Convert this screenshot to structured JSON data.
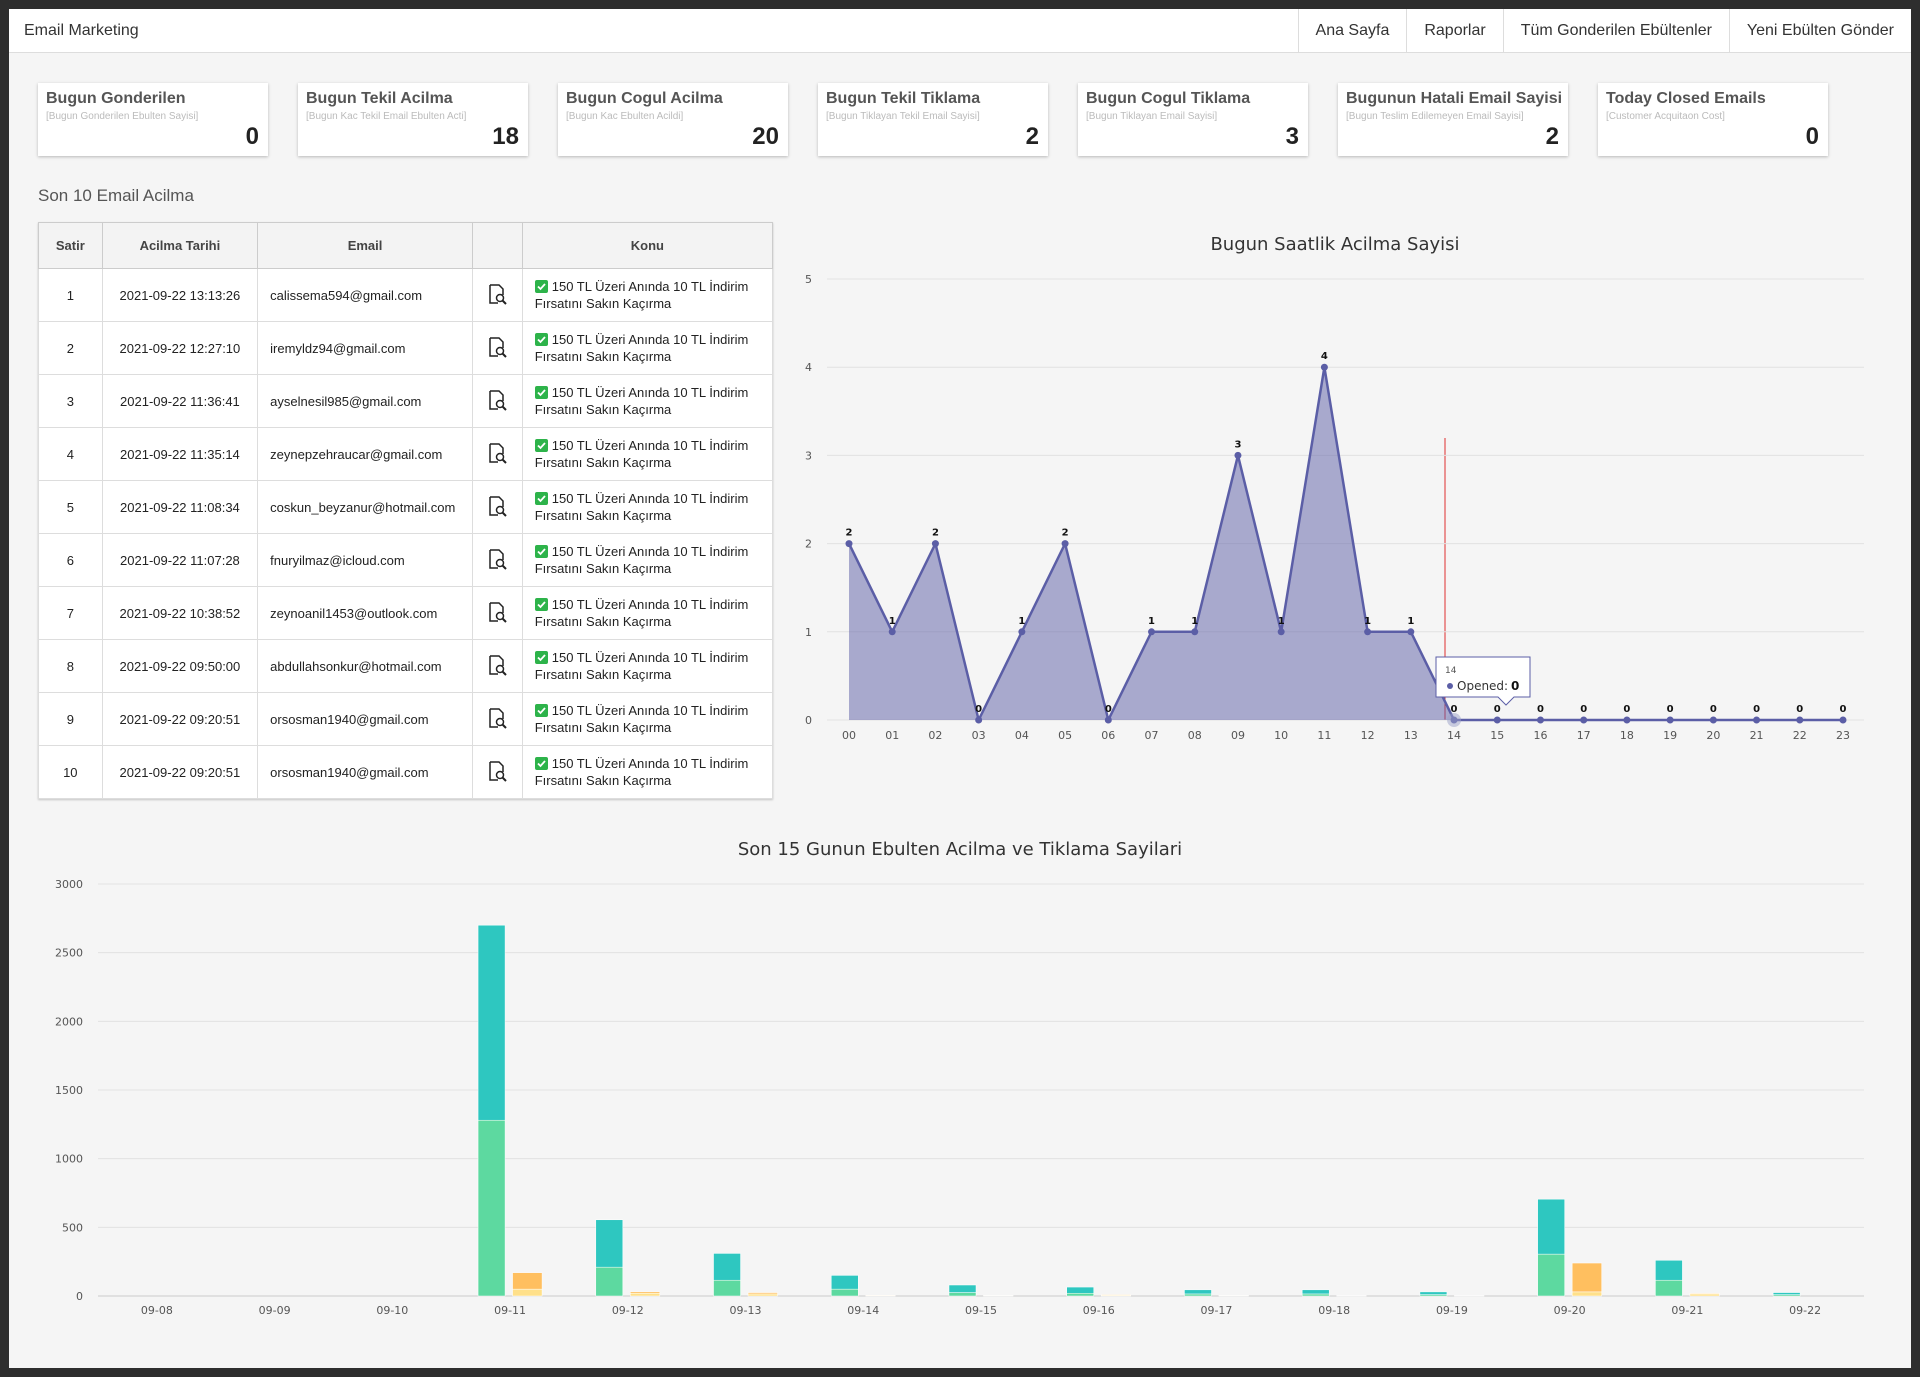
{
  "nav": {
    "brand": "Email Marketing",
    "links": [
      "Ana Sayfa",
      "Raporlar",
      "Tüm Gonderilen Ebültenler",
      "Yeni Ebülten Gönder"
    ]
  },
  "cards": [
    {
      "title": "Bugun Gonderilen",
      "subtitle": "[Bugun Gonderilen Ebulten Sayisi]",
      "value": 0
    },
    {
      "title": "Bugun Tekil Acilma",
      "subtitle": "[Bugun Kac Tekil Email Ebulten Acti]",
      "value": 18
    },
    {
      "title": "Bugun Cogul Acilma",
      "subtitle": "[Bugun Kac Ebulten Acildi]",
      "value": 20
    },
    {
      "title": "Bugun Tekil Tiklama",
      "subtitle": "[Bugun Tiklayan Tekil Email Sayisi]",
      "value": 2
    },
    {
      "title": "Bugun Cogul Tiklama",
      "subtitle": "[Bugun Tiklayan Email Sayisi]",
      "value": 3
    },
    {
      "title": "Bugunun Hatali Email Sayisi",
      "subtitle": "[Bugun Teslim Edilemeyen Email Sayisi]",
      "value": 2
    },
    {
      "title": "Today Closed Emails",
      "subtitle": "[Customer Acquitaon Cost]",
      "value": 0
    }
  ],
  "table": {
    "title": "Son 10 Email Acilma",
    "headers": [
      "Satir",
      "Acilma Tarihi",
      "Email",
      "Konu"
    ],
    "rows": [
      [
        "1",
        "2021-09-22 13:13:26",
        "calissema594@gmail.com",
        "150 TL Üzeri Anında 10 TL İndirim Fırsatını Sakın Kaçırma"
      ],
      [
        "2",
        "2021-09-22 12:27:10",
        "iremyldz94@gmail.com",
        "150 TL Üzeri Anında 10 TL İndirim Fırsatını Sakın Kaçırma"
      ],
      [
        "3",
        "2021-09-22 11:36:41",
        "ayselnesil985@gmail.com",
        "150 TL Üzeri Anında 10 TL İndirim Fırsatını Sakın Kaçırma"
      ],
      [
        "4",
        "2021-09-22 11:35:14",
        "zeynepzehraucar@gmail.com",
        "150 TL Üzeri Anında 10 TL İndirim Fırsatını Sakın Kaçırma"
      ],
      [
        "5",
        "2021-09-22 11:08:34",
        "coskun_beyzanur@hotmail.com",
        "150 TL Üzeri Anında 10 TL İndirim Fırsatını Sakın Kaçırma"
      ],
      [
        "6",
        "2021-09-22 11:07:28",
        "fnuryilmaz@icloud.com",
        "150 TL Üzeri Anında 10 TL İndirim Fırsatını Sakın Kaçırma"
      ],
      [
        "7",
        "2021-09-22 10:38:52",
        "zeynoanil1453@outlook.com",
        "150 TL Üzeri Anında 10 TL İndirim Fırsatını Sakın Kaçırma"
      ],
      [
        "8",
        "2021-09-22 09:50:00",
        "abdullahsonkur@hotmail.com",
        "150 TL Üzeri Anında 10 TL İndirim Fırsatını Sakın Kaçırma"
      ],
      [
        "9",
        "2021-09-22 09:20:51",
        "orsosman1940@gmail.com",
        "150 TL Üzeri Anında 10 TL İndirim Fırsatını Sakın Kaçırma"
      ],
      [
        "10",
        "2021-09-22 09:20:51",
        "orsosman1940@gmail.com",
        "150 TL Üzeri Anında 10 TL İndirim Fırsatını Sakın Kaçırma"
      ]
    ]
  },
  "chart_data": [
    {
      "type": "area",
      "title": "Bugun Saatlik Acilma Sayisi",
      "categories": [
        "00",
        "01",
        "02",
        "03",
        "04",
        "05",
        "06",
        "07",
        "08",
        "09",
        "10",
        "11",
        "12",
        "13",
        "14",
        "15",
        "16",
        "17",
        "18",
        "19",
        "20",
        "21",
        "22",
        "23"
      ],
      "series": [
        {
          "name": "Opened",
          "color": "#5b5ea6",
          "values": [
            2,
            1,
            2,
            0,
            1,
            2,
            0,
            1,
            1,
            3,
            1,
            4,
            1,
            1,
            0,
            0,
            0,
            0,
            0,
            0,
            0,
            0,
            0,
            0
          ]
        }
      ],
      "ylim": [
        0,
        5
      ],
      "yticks": [
        0,
        1,
        2,
        3,
        4,
        5
      ],
      "grid": true,
      "tooltip": {
        "title": "14",
        "label": "Opened:",
        "value": 0
      }
    },
    {
      "type": "stacked-bar",
      "title": "Son 15 Gunun Ebulten Acilma ve Tiklama Sayilari",
      "categories": [
        "09-08",
        "09-09",
        "09-10",
        "09-11",
        "09-12",
        "09-13",
        "09-14",
        "09-15",
        "09-16",
        "09-17",
        "09-18",
        "09-19",
        "09-20",
        "09-21",
        "09-22"
      ],
      "series": [
        {
          "color": "#5dd9a0",
          "stack": "a",
          "values": [
            0,
            0,
            0,
            1280,
            210,
            115,
            50,
            25,
            20,
            15,
            15,
            10,
            305,
            115,
            10
          ]
        },
        {
          "color": "#2ec7c0",
          "stack": "a",
          "values": [
            0,
            0,
            0,
            1420,
            345,
            195,
            100,
            55,
            45,
            30,
            30,
            20,
            400,
            145,
            15
          ]
        },
        {
          "color": "#ffe08a",
          "stack": "b",
          "values": [
            0,
            0,
            0,
            50,
            20,
            15,
            3,
            2,
            5,
            2,
            1,
            1,
            30,
            15,
            0
          ]
        },
        {
          "color": "#ffbf5f",
          "stack": "b",
          "values": [
            0,
            0,
            0,
            120,
            10,
            10,
            2,
            1,
            5,
            1,
            1,
            1,
            210,
            5,
            0
          ]
        }
      ],
      "ylim": [
        0,
        3000
      ],
      "yticks": [
        0,
        500,
        1000,
        1500,
        2000,
        2500,
        3000
      ],
      "grid": true
    }
  ]
}
